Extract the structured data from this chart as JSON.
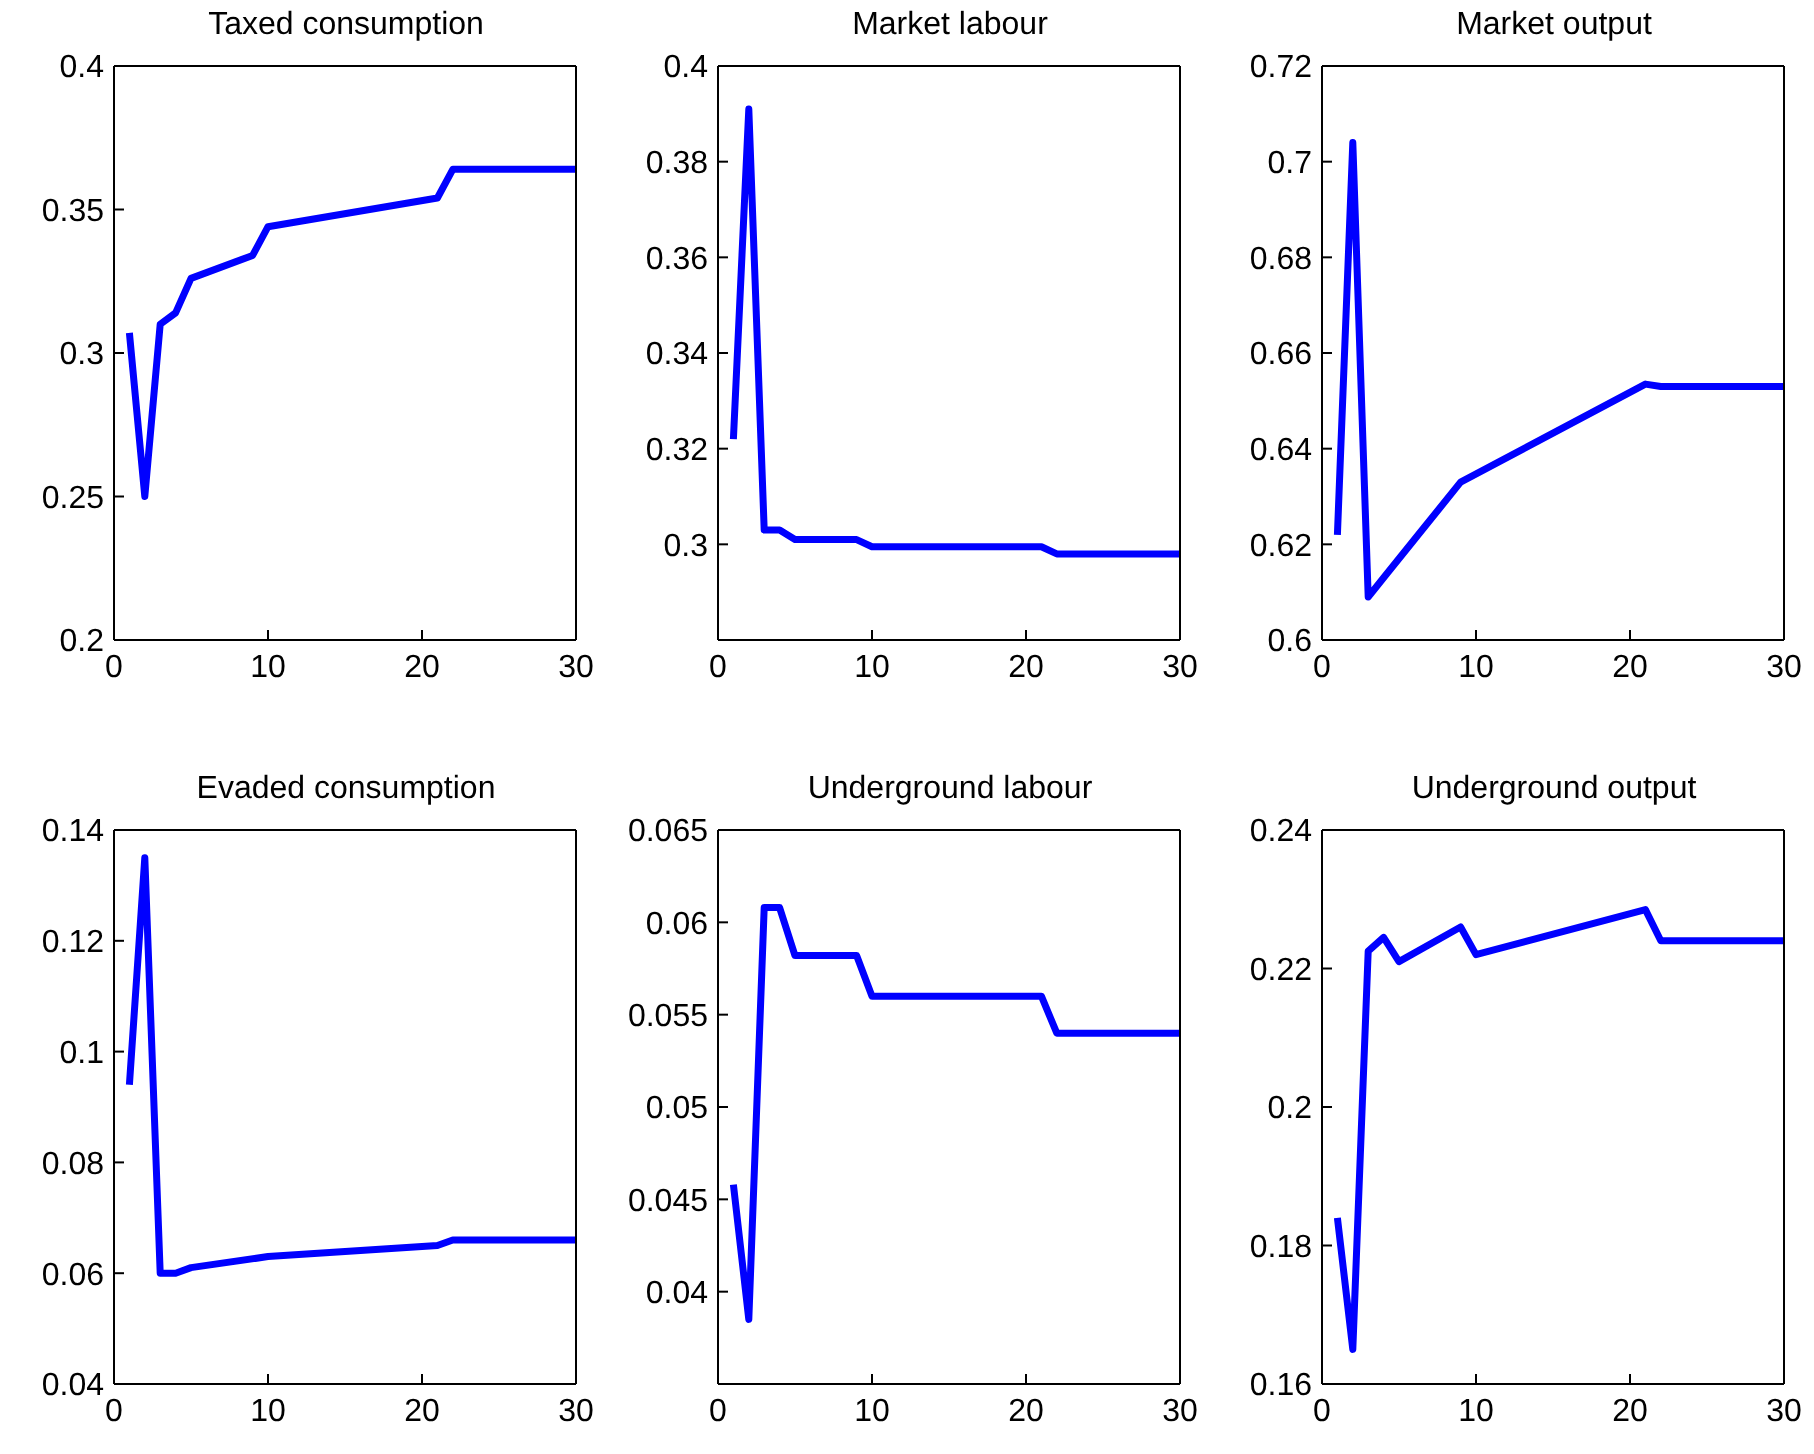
{
  "chart_data": [
    {
      "type": "line",
      "title": "Taxed consumption",
      "x": [
        1,
        2,
        3,
        4,
        5,
        9,
        10,
        21,
        22,
        30
      ],
      "series": [
        {
          "color": "#0000ff",
          "values": [
            0.307,
            0.25,
            0.31,
            0.314,
            0.326,
            0.334,
            0.344,
            0.354,
            0.364,
            0.364
          ]
        }
      ],
      "xlim": [
        0,
        30
      ],
      "xticks": [
        0,
        10,
        20,
        30
      ],
      "ylim": [
        0.2,
        0.4
      ],
      "yticks": [
        0.2,
        0.25,
        0.3,
        0.35,
        0.4
      ],
      "line_style": "solid"
    },
    {
      "type": "line",
      "title": "Market labour",
      "x": [
        1,
        2,
        3,
        4,
        5,
        9,
        10,
        21,
        22,
        30
      ],
      "series": [
        {
          "color": "#0000ff",
          "values": [
            0.322,
            0.391,
            0.303,
            0.303,
            0.301,
            0.301,
            0.2995,
            0.2995,
            0.298,
            0.298
          ]
        }
      ],
      "xlim": [
        0,
        30
      ],
      "xticks": [
        0,
        10,
        20,
        30
      ],
      "ylim": [
        0.28,
        0.4
      ],
      "yticks": [
        0.3,
        0.32,
        0.34,
        0.36,
        0.38,
        0.4
      ],
      "line_style": "solid"
    },
    {
      "type": "line",
      "title": "Market output",
      "x": [
        1,
        2,
        3,
        4,
        6,
        9,
        21,
        22,
        30
      ],
      "series": [
        {
          "color": "#0000ff",
          "values": [
            0.622,
            0.704,
            0.609,
            0.613,
            0.621,
            0.633,
            0.6535,
            0.653,
            0.653
          ]
        }
      ],
      "xlim": [
        0,
        30
      ],
      "xticks": [
        0,
        10,
        20,
        30
      ],
      "ylim": [
        0.6,
        0.72
      ],
      "yticks": [
        0.6,
        0.62,
        0.64,
        0.66,
        0.68,
        0.7,
        0.72
      ],
      "line_style": "solid"
    },
    {
      "type": "line",
      "title": "Evaded consumption",
      "x": [
        1,
        2,
        3,
        4,
        5,
        10,
        21,
        22,
        30
      ],
      "series": [
        {
          "color": "#0000ff",
          "values": [
            0.094,
            0.135,
            0.06,
            0.06,
            0.061,
            0.063,
            0.065,
            0.066,
            0.066
          ]
        }
      ],
      "xlim": [
        0,
        30
      ],
      "xticks": [
        0,
        10,
        20,
        30
      ],
      "ylim": [
        0.04,
        0.14
      ],
      "yticks": [
        0.04,
        0.06,
        0.08,
        0.1,
        0.12,
        0.14
      ],
      "line_style": "solid"
    },
    {
      "type": "line",
      "title": "Underground labour",
      "x": [
        1,
        2,
        3,
        4,
        5,
        9,
        10,
        21,
        22,
        30
      ],
      "series": [
        {
          "color": "#0000ff",
          "values": [
            0.0458,
            0.0385,
            0.0608,
            0.0608,
            0.0582,
            0.0582,
            0.056,
            0.056,
            0.054,
            0.054
          ]
        }
      ],
      "xlim": [
        0,
        30
      ],
      "xticks": [
        0,
        10,
        20,
        30
      ],
      "ylim": [
        0.035,
        0.065
      ],
      "yticks": [
        0.04,
        0.045,
        0.05,
        0.055,
        0.06,
        0.065
      ],
      "line_style": "solid"
    },
    {
      "type": "line",
      "title": "Underground output",
      "x": [
        1,
        2,
        3,
        4,
        5,
        9,
        10,
        21,
        22,
        30
      ],
      "series": [
        {
          "color": "#0000ff",
          "values": [
            0.184,
            0.165,
            0.2225,
            0.2245,
            0.221,
            0.226,
            0.222,
            0.2285,
            0.224,
            0.224
          ]
        }
      ],
      "xlim": [
        0,
        30
      ],
      "xticks": [
        0,
        10,
        20,
        30
      ],
      "ylim": [
        0.16,
        0.24
      ],
      "yticks": [
        0.16,
        0.18,
        0.2,
        0.22,
        0.24
      ],
      "line_style": "solid"
    }
  ]
}
